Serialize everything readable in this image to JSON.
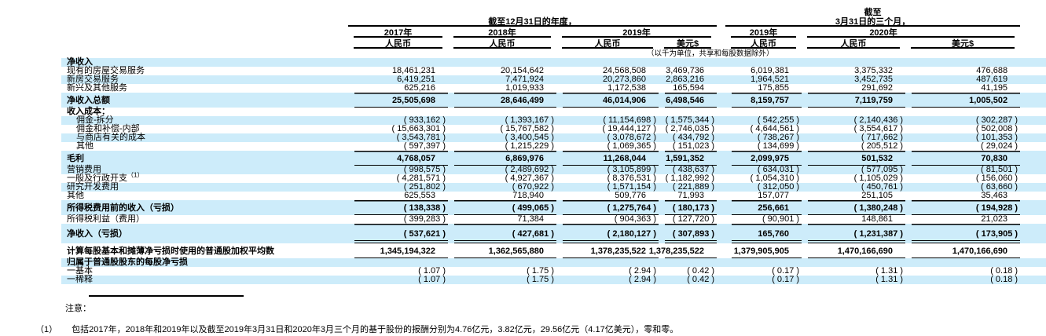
{
  "table": {
    "stripe_color": "#cdecfa",
    "header": {
      "annual_period_title": "截至12月31日的年度，",
      "quarterly_period_title_line1": "截至",
      "quarterly_period_title_line2": "3月31日的三个月，",
      "annual_years": [
        "2017年",
        "2018年",
        "2019年"
      ],
      "quarterly_years": [
        "2019年",
        "2020年"
      ],
      "rmb_label": "人民币",
      "usd_label": "美元$",
      "unit_note": "（以千为单位，共享和每股数据除外）"
    },
    "rows": [
      {
        "label": "净收入",
        "bold": true,
        "stripe": true,
        "values": [
          "",
          "",
          "",
          "",
          "",
          "",
          ""
        ]
      },
      {
        "label": "现有的房屋交易服务",
        "values": [
          "18,461,231",
          "20,154,642",
          "24,568,508",
          "3,469,736",
          "6,019,381",
          "3,375,332",
          "476,688"
        ]
      },
      {
        "label": "新房交易服务",
        "stripe": true,
        "values": [
          "6,419,251",
          "7,471,924",
          "20,273,860",
          "2,863,216",
          "1,964,521",
          "3,452,735",
          "487,619"
        ]
      },
      {
        "label": "新兴及其他服务",
        "values": [
          "625,216",
          "1,019,933",
          "1,172,538",
          "165,594",
          "175,855",
          "291,692",
          "41,195"
        ]
      },
      {
        "label": "净收入总额",
        "bold": true,
        "stripe": true,
        "rule": "r-tb",
        "values": [
          "25,505,698",
          "28,646,499",
          "46,014,906",
          "6,498,546",
          "8,159,757",
          "7,119,759",
          "1,005,502"
        ]
      },
      {
        "label": "收入成本：",
        "bold": true,
        "values": [
          "",
          "",
          "",
          "",
          "",
          "",
          ""
        ]
      },
      {
        "label": "佣金-拆分",
        "indent": true,
        "stripe": true,
        "values": [
          "( 933,162 )",
          "( 1,393,167 )",
          "( 11,154,698 )",
          "( 1,575,344 )",
          "( 542,255 )",
          "( 2,140,436 )",
          "( 302,287 )"
        ]
      },
      {
        "label": "佣金和补偿-内部",
        "indent": true,
        "values": [
          "( 15,663,301 )",
          "( 15,767,582 )",
          "( 19,444,127 )",
          "( 2,746,035 )",
          "( 4,644,561 )",
          "( 3,554,617 )",
          "( 502,008 )"
        ]
      },
      {
        "label": "与商店有关的成本",
        "indent": true,
        "stripe": true,
        "values": [
          "( 3,543,781 )",
          "( 3,400,545 )",
          "( 3,078,672 )",
          "( 434,792 )",
          "( 738,267 )",
          "( 717,662 )",
          "( 101,353 )"
        ]
      },
      {
        "label": "其他",
        "indent": true,
        "values": [
          "( 597,397 )",
          "( 1,215,229 )",
          "( 1,069,365 )",
          "( 151,023 )",
          "( 134,699 )",
          "( 205,512 )",
          "( 29,024 )"
        ]
      },
      {
        "label": "毛利",
        "bold": true,
        "stripe": true,
        "rule": "r-tb",
        "values": [
          "4,768,057",
          "6,869,976",
          "11,268,044",
          "1,591,352",
          "2,099,975",
          "501,532",
          "70,830"
        ]
      },
      {
        "label": "营销费用",
        "stripe": true,
        "values": [
          "( 998,575 )",
          "( 2,489,692 )",
          "( 3,105,899 )",
          "( 438,637 )",
          "( 634,031 )",
          "( 577,095 )",
          "( 81,501 )"
        ]
      },
      {
        "label": "一般及行政开支",
        "sup": "（1）",
        "values": [
          "( 4,281,571 )",
          "( 4,927,367 )",
          "( 8,376,531 )",
          "( 1,182,992 )",
          "( 1,054,310 )",
          "( 1,105,029 )",
          "( 156,060 )"
        ]
      },
      {
        "label": "研究开发费用",
        "stripe": true,
        "values": [
          "( 251,802 )",
          "( 670,922 )",
          "( 1,571,154 )",
          "( 221,889 )",
          "( 312,050 )",
          "( 450,761 )",
          "( 63,660 )"
        ]
      },
      {
        "label": "其他",
        "values": [
          "625,553",
          "718,940",
          "509,776",
          "71,993",
          "157,077",
          "251,105",
          "35,463"
        ]
      },
      {
        "label": "所得税费用前的收入（亏损）",
        "bold": true,
        "stripe": true,
        "rule": "r-tb",
        "values": [
          "( 138,338 )",
          "( 499,065 )",
          "( 1,275,764 )",
          "( 180,173 )",
          "256,661",
          "( 1,380,248 )",
          "( 194,928 )"
        ]
      },
      {
        "label": "所得税利益（费用）",
        "values": [
          "( 399,283 )",
          "71,384",
          "( 904,363 )",
          "( 127,720 )",
          "( 90,901 )",
          "148,861",
          "21,023"
        ]
      },
      {
        "label": "净收入（亏损）",
        "bold": true,
        "stripe": true,
        "rule": "r-t-db",
        "values": [
          "( 537,621 )",
          "( 427,681 )",
          "( 2,180,127 )",
          "( 307,893 )",
          "165,760",
          "( 1,231,387 )",
          "( 173,905 )"
        ]
      },
      {
        "label": "计算每股基本和摊薄净亏损时使用的普通股加权平均数",
        "bold": true,
        "rule": "r-b",
        "values": [
          "1,345,194,322",
          "1,362,565,880",
          "1,378,235,522",
          "1,378,235,522",
          "1,379,905,905",
          "1,470,166,690",
          "1,470,166,690"
        ]
      },
      {
        "label": "归属于普通股股东的每股净亏损",
        "bold": true,
        "stripe": true,
        "values": [
          "",
          "",
          "",
          "",
          "",
          "",
          ""
        ]
      },
      {
        "label": "一基本",
        "values": [
          "( 1.07 )",
          "( 1.75 )",
          "( 2.94 )",
          "( 0.42 )",
          "( 0.17 )",
          "( 1.31 )",
          "( 0.18 )"
        ]
      },
      {
        "label": "一稀释",
        "stripe": true,
        "values": [
          "( 1.07 )",
          "( 1.75 )",
          "( 2.94 )",
          "( 0.42 )",
          "( 0.17 )",
          "( 1.31 )",
          "( 0.18 )"
        ]
      }
    ]
  },
  "notes": {
    "heading": "注意：",
    "footnotes": [
      {
        "marker": "（1）",
        "text": "包括2017年，2018年和2019年以及截至2019年3月31日和2020年3月三个月的基于股份的报酬分别为4.76亿元，3.82亿元，29.56亿元（4.17亿美元），零和零。"
      }
    ]
  }
}
